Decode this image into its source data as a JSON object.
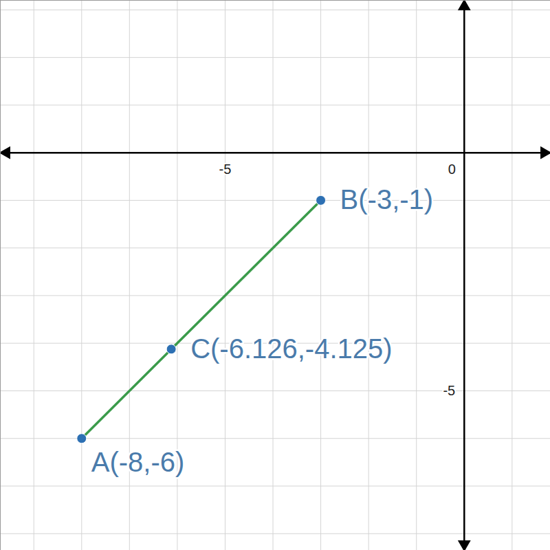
{
  "chart_data": {
    "type": "line",
    "xlim": [
      -9.7,
      1.8
    ],
    "ylim": [
      -8.35,
      3.2
    ],
    "xticks": [
      -5,
      0
    ],
    "yticks": [
      -5
    ],
    "grid": true,
    "series": [
      {
        "type": "line",
        "color": "#3b9b4b",
        "x": [
          -8,
          -3
        ],
        "y": [
          -6,
          -1
        ]
      },
      {
        "type": "scatter",
        "color": "#2d70b3",
        "marker": "circle",
        "x": [
          -8,
          -3,
          -6.126
        ],
        "y": [
          -6,
          -1,
          -4.125
        ],
        "labels": [
          "A(-8,-6)",
          "B(-3,-1)",
          "C(-6.126,-4.125)"
        ]
      }
    ]
  }
}
